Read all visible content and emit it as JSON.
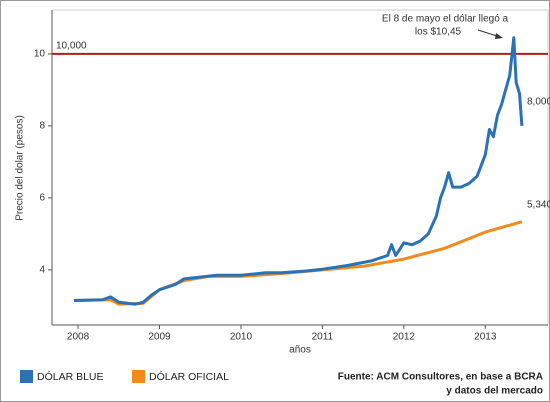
{
  "chart_data": {
    "type": "line",
    "y_label": "Precio del dolar (pesos)",
    "x_label": "años",
    "xlim": [
      2007.68,
      2013.77
    ],
    "xticks": [
      2008,
      2009,
      2010,
      2011,
      2012,
      2013
    ],
    "ylim": [
      2.47,
      11.22
    ],
    "yticks": [
      4,
      6,
      8,
      10
    ],
    "series": [
      {
        "name": "DÓLAR BLUE",
        "color": "#2a72b5",
        "x": [
          2007.95,
          2008.3,
          2008.4,
          2008.5,
          2008.7,
          2008.8,
          2008.9,
          2009.0,
          2009.2,
          2009.3,
          2009.5,
          2009.7,
          2010.0,
          2010.3,
          2010.5,
          2010.8,
          2011.0,
          2011.3,
          2011.6,
          2011.8,
          2011.85,
          2011.9,
          2012.0,
          2012.1,
          2012.2,
          2012.3,
          2012.4,
          2012.45,
          2012.5,
          2012.55,
          2012.6,
          2012.7,
          2012.8,
          2012.9,
          2013.0,
          2013.05,
          2013.1,
          2013.15,
          2013.2,
          2013.25,
          2013.3,
          2013.35,
          2013.38,
          2013.42,
          2013.45
        ],
        "values": [
          3.15,
          3.17,
          3.25,
          3.1,
          3.05,
          3.1,
          3.3,
          3.45,
          3.6,
          3.75,
          3.8,
          3.85,
          3.85,
          3.92,
          3.92,
          3.97,
          4.02,
          4.12,
          4.25,
          4.4,
          4.7,
          4.4,
          4.75,
          4.7,
          4.8,
          5.0,
          5.5,
          6.0,
          6.3,
          6.7,
          6.3,
          6.3,
          6.4,
          6.6,
          7.2,
          7.9,
          7.7,
          8.3,
          8.6,
          9.0,
          9.4,
          10.45,
          9.2,
          8.9,
          8.0
        ]
      },
      {
        "name": "DÓLAR OFICIAL",
        "color": "#f28a1c",
        "x": [
          2007.95,
          2008.4,
          2008.5,
          2008.8,
          2009.0,
          2009.3,
          2009.6,
          2010.0,
          2010.5,
          2011.0,
          2011.5,
          2012.0,
          2012.5,
          2013.0,
          2013.45
        ],
        "values": [
          3.15,
          3.17,
          3.05,
          3.07,
          3.45,
          3.7,
          3.82,
          3.82,
          3.9,
          4.0,
          4.1,
          4.3,
          4.6,
          5.05,
          5.34
        ]
      }
    ],
    "hline": {
      "value": 10,
      "label": "10,000",
      "color": "#b01c1c"
    },
    "annotations": [
      {
        "text": "El 8 de mayo el dólar llegó a"
      },
      {
        "text": "los $10,45"
      },
      {
        "text": "8,000"
      },
      {
        "text": "5,340"
      }
    ],
    "source": [
      "Fuente: ACM Consultores, en base a BCRA",
      "y datos del mercado"
    ]
  }
}
